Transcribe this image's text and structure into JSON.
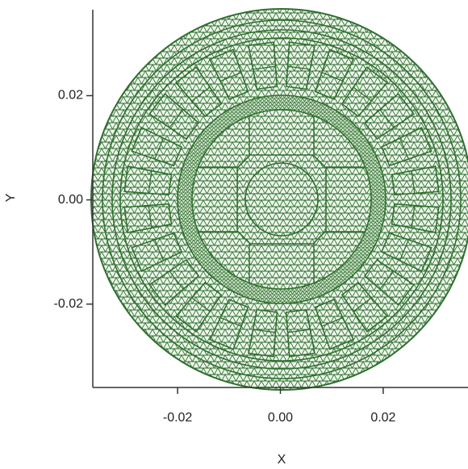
{
  "chart_data": {
    "type": "mesh",
    "xlabel": "X",
    "ylabel": "Y",
    "color": "#2f6f2f",
    "xlim": [
      -0.0365,
      0.0365
    ],
    "ylim": [
      -0.036,
      0.0365
    ],
    "xticks": [
      -0.02,
      {
        "value": 0,
        "label": "0.00"
      },
      0.02
    ],
    "yticks": [
      -0.02,
      {
        "value": 0,
        "label": "0.00"
      },
      0.02
    ]
  }
}
